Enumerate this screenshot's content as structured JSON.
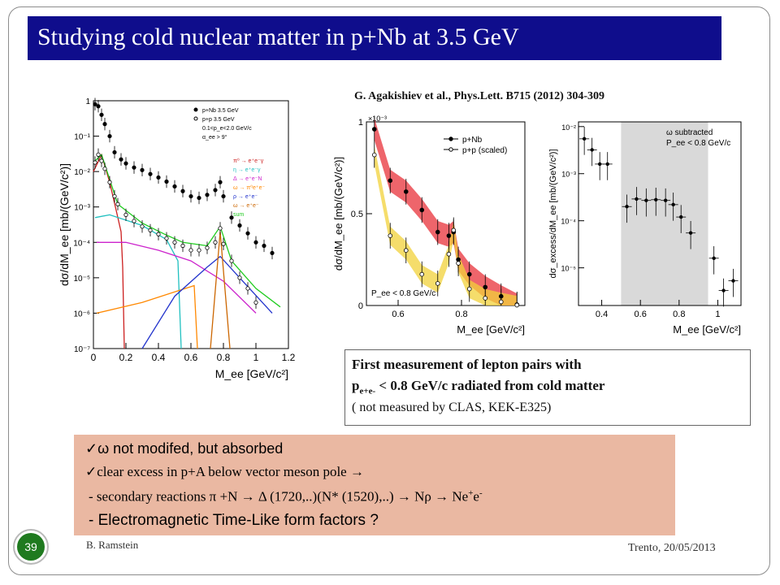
{
  "slide": {
    "title": "Studying cold nuclear matter in p+Nb at 3.5 GeV",
    "citation": "G. Agakishiev et al., Phys.Lett. B715 (2012) 304-309",
    "number": "39",
    "author": "B. Ramstein",
    "place_date": "Trento, 20/05/2013",
    "colors": {
      "title_bg": "#0f0d8c",
      "notes_bg": "#eab8a2",
      "badge": "#1f7a1f"
    }
  },
  "infobox": {
    "line1": "First measurement of lepton pairs with",
    "line2_main": "p",
    "line2_sub": "e+e-",
    "line2_rest": " < 0.8 GeV/c radiated from cold matter",
    "line3": " ( not measured by CLAS, KEK-E325)"
  },
  "notes": {
    "item1": " not modifed, but absorbed",
    "item1_symbol": "ω",
    "item2": "clear excess in p+A below vector meson pole  →",
    "item3": "-  secondary reactions π +N → Δ (1720,..)(N* (1520),..) → Nρ → Ne",
    "item3_sup1": "+",
    "item3_mid": "e",
    "item3_sup2": "-",
    "item4": "-  Electromagnetic Time-Like form factors  ?",
    "check_icon": "check-icon"
  },
  "chart_data": [
    {
      "type": "line",
      "panel": "left",
      "xlabel": "M_ee [GeV/c²]",
      "ylabel": "dσ/dM_ee [mb/(GeV/c²)]",
      "xlim": [
        0,
        1.2
      ],
      "ylim_log10": [
        -7,
        0
      ],
      "y_scale": "log",
      "xticks": [
        "0",
        "0.2",
        "0.4",
        "0.6",
        "0.8",
        "1",
        "1.2"
      ],
      "yticks": [
        "10⁻⁷",
        "10⁻⁶",
        "10⁻⁵",
        "10⁻⁴",
        "10⁻³",
        "10⁻²",
        "10⁻¹",
        "1"
      ],
      "legend": [
        "p+Nb 3.5 GeV",
        "p+p 3.5 GeV",
        "0.1<p_e<2.0 GeV/c",
        "α_ee > 9°"
      ],
      "legend2": [
        "π⁰ → e⁺e⁻γ",
        "η → e⁺e⁻γ",
        "Δ → e⁺e⁻N",
        "ω → π⁰e⁺e⁻",
        "ρ → e⁺e⁻",
        "ω → e⁺e⁻",
        "sum"
      ],
      "legend2_colors": [
        "#cc1f1f",
        "#20c0c0",
        "#cc22cc",
        "#ff8800",
        "#2233cc",
        "#cc6600",
        "#20cc20"
      ],
      "series": [
        {
          "name": "p+Nb 3.5 GeV",
          "x": [
            0.01,
            0.03,
            0.05,
            0.07,
            0.1,
            0.13,
            0.17,
            0.2,
            0.25,
            0.3,
            0.35,
            0.4,
            0.45,
            0.5,
            0.55,
            0.6,
            0.65,
            0.7,
            0.75,
            0.78,
            0.8,
            0.85,
            0.9,
            0.95,
            1.0,
            1.05,
            1.1
          ],
          "y": [
            0.8,
            0.7,
            0.4,
            0.22,
            0.1,
            0.035,
            0.022,
            0.017,
            0.013,
            0.011,
            0.0085,
            0.0068,
            0.0052,
            0.0038,
            0.0028,
            0.002,
            0.0018,
            0.0022,
            0.003,
            0.005,
            0.002,
            0.0005,
            0.0003,
            0.00018,
            0.0001,
            8e-05,
            5e-05
          ]
        },
        {
          "name": "p+p 3.5 GeV",
          "x": [
            0.01,
            0.03,
            0.05,
            0.07,
            0.1,
            0.13,
            0.15,
            0.2,
            0.25,
            0.3,
            0.35,
            0.4,
            0.45,
            0.5,
            0.55,
            0.6,
            0.65,
            0.7,
            0.75,
            0.78,
            0.8,
            0.85,
            0.9,
            0.95,
            1.0
          ],
          "y": [
            0.018,
            0.03,
            0.02,
            0.012,
            0.005,
            0.002,
            0.0012,
            0.0006,
            0.0004,
            0.00028,
            0.00022,
            0.00017,
            0.00013,
            0.0001,
            8e-05,
            6e-05,
            6e-05,
            7e-05,
            0.0001,
            0.00025,
            9e-05,
            3e-05,
            1e-05,
            5e-06,
            2e-06
          ]
        }
      ]
    },
    {
      "type": "line",
      "panel": "middle",
      "xlabel": "M_ee [GeV/c²]",
      "ylabel": "dσ/dM_ee [mb/(GeV/c²)]",
      "y_multiplier": "×10⁻³",
      "xlim": [
        0.5,
        1.0
      ],
      "ylim": [
        0,
        1.0
      ],
      "xticks": [
        "0.6",
        "0.8"
      ],
      "yticks": [
        "0",
        "0.5",
        "1"
      ],
      "annotation": "P_ee < 0.8 GeV/c",
      "series": [
        {
          "name": "p+Nb",
          "x": [
            0.525,
            0.575,
            0.625,
            0.675,
            0.725,
            0.76,
            0.775,
            0.79,
            0.825,
            0.875,
            0.925,
            0.975
          ],
          "y": [
            0.96,
            0.68,
            0.62,
            0.52,
            0.4,
            0.38,
            0.4,
            0.25,
            0.17,
            0.1,
            0.05,
            0.005
          ]
        },
        {
          "name": "p+p (scaled)",
          "x": [
            0.525,
            0.575,
            0.625,
            0.675,
            0.725,
            0.76,
            0.775,
            0.79,
            0.825,
            0.875,
            0.925,
            0.975
          ],
          "y": [
            0.82,
            0.38,
            0.3,
            0.17,
            0.12,
            0.28,
            0.41,
            0.23,
            0.09,
            0.04,
            0.02,
            0.002
          ]
        }
      ]
    },
    {
      "type": "scatter",
      "panel": "right",
      "xlabel": "M_ee [GeV/c²]",
      "ylabel": "dσ_excess/dM_ee [mb/(GeV/c²)]",
      "xlim": [
        0.28,
        1.12
      ],
      "ylim_log10": [
        -5.8,
        -1.9
      ],
      "y_scale": "log",
      "xticks": [
        "0.4",
        "0.6",
        "0.8",
        "1"
      ],
      "yticks": [
        "10⁻⁵",
        "10⁻⁴",
        "10⁻³",
        "10⁻²"
      ],
      "annotation": [
        "ω subtracted",
        "P_ee < 0.8 GeV/c"
      ],
      "shaded_x": [
        0.5,
        0.95
      ],
      "series": [
        {
          "x": [
            0.31,
            0.35,
            0.39,
            0.43,
            0.53,
            0.58,
            0.63,
            0.68,
            0.73,
            0.77,
            0.81,
            0.86,
            0.98,
            1.03,
            1.08
          ],
          "y": [
            0.0055,
            0.0032,
            0.0016,
            0.0016,
            0.0002,
            0.00029,
            0.00027,
            0.00028,
            0.00027,
            0.00022,
            0.00012,
            5.5e-05,
            1.6e-05,
            3.3e-06,
            5.3e-06
          ]
        }
      ]
    }
  ]
}
